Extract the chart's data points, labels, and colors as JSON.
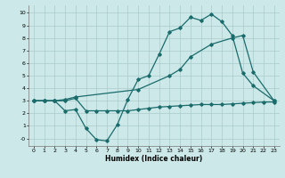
{
  "title": "",
  "xlabel": "Humidex (Indice chaleur)",
  "ylabel": "",
  "background_color": "#cce8e8",
  "grid_color": "#aacccc",
  "line_color": "#1a6b6b",
  "xlim": [
    -0.5,
    23.5
  ],
  "ylim": [
    -0.6,
    10.6
  ],
  "xticks": [
    0,
    1,
    2,
    3,
    4,
    5,
    6,
    7,
    8,
    9,
    10,
    11,
    12,
    13,
    14,
    15,
    16,
    17,
    18,
    19,
    20,
    21,
    22,
    23
  ],
  "yticks": [
    0,
    1,
    2,
    3,
    4,
    5,
    6,
    7,
    8,
    9,
    10
  ],
  "ytick_labels": [
    "-0",
    "1",
    "2",
    "3",
    "4",
    "5",
    "6",
    "7",
    "8",
    "9",
    "10"
  ],
  "line1_x": [
    0,
    1,
    2,
    3,
    4,
    5,
    6,
    7,
    8,
    9,
    10,
    11,
    12,
    13,
    14,
    15,
    16,
    17,
    18,
    19,
    20,
    21,
    23
  ],
  "line1_y": [
    3.0,
    3.0,
    3.0,
    2.2,
    2.3,
    0.8,
    -0.1,
    -0.2,
    1.1,
    3.1,
    4.7,
    5.0,
    6.7,
    8.5,
    8.8,
    9.65,
    9.4,
    9.9,
    9.3,
    8.2,
    5.2,
    4.2,
    3.0
  ],
  "line2_x": [
    0,
    1,
    2,
    3,
    4,
    5,
    6,
    7,
    8,
    9,
    10,
    11,
    12,
    13,
    14,
    15,
    16,
    17,
    18,
    19,
    20,
    21,
    22,
    23
  ],
  "line2_y": [
    3.0,
    3.0,
    3.0,
    3.0,
    3.2,
    2.2,
    2.2,
    2.2,
    2.2,
    2.2,
    2.3,
    2.4,
    2.5,
    2.55,
    2.6,
    2.65,
    2.7,
    2.7,
    2.7,
    2.75,
    2.8,
    2.85,
    2.9,
    2.9
  ],
  "line3_x": [
    0,
    1,
    2,
    3,
    4,
    10,
    13,
    14,
    15,
    17,
    19,
    20,
    21,
    23
  ],
  "line3_y": [
    3.0,
    3.0,
    3.0,
    3.1,
    3.3,
    3.9,
    5.0,
    5.5,
    6.5,
    7.5,
    8.0,
    8.2,
    5.3,
    3.0
  ]
}
